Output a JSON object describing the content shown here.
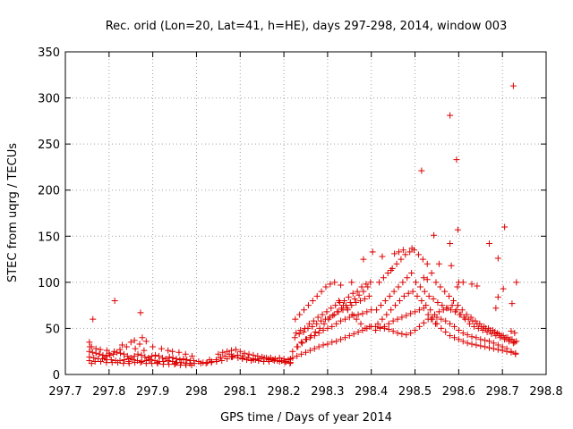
{
  "chart_data": {
    "type": "scatter",
    "title": "Rec. orid (Lon=20, Lat=41, h=HE), days 297-298, 2014, window 003",
    "xlabel": "GPS time / Days of year 2014",
    "ylabel": "STEC from uqrg / TECUs",
    "xlim": [
      297.7,
      298.8
    ],
    "ylim": [
      0,
      350
    ],
    "xticks": [
      "297.7",
      "297.8",
      "297.9",
      "298",
      "298.1",
      "298.2",
      "298.3",
      "298.4",
      "298.5",
      "298.6",
      "298.7",
      "298.8"
    ],
    "yticks": [
      "0",
      "50",
      "100",
      "150",
      "200",
      "250",
      "300",
      "350"
    ],
    "grid": true,
    "marker": "+",
    "color": "#dd0000",
    "series": [
      {
        "name": "STEC",
        "x": [
          297.755,
          297.762,
          297.77,
          297.778,
          297.786,
          297.794,
          297.802,
          297.81,
          297.818,
          297.826,
          297.834,
          297.842,
          297.85,
          297.858,
          297.866,
          297.874,
          297.882,
          297.89,
          297.898,
          297.906,
          297.914,
          297.922,
          297.93,
          297.938,
          297.946,
          297.954,
          297.962,
          297.97,
          297.978,
          297.986,
          297.994,
          297.755,
          297.765,
          297.775,
          297.785,
          297.795,
          297.805,
          297.815,
          297.825,
          297.835,
          297.845,
          297.855,
          297.865,
          297.875,
          297.885,
          297.895,
          297.905,
          297.915,
          297.925,
          297.935,
          297.945,
          297.955,
          297.965,
          297.975,
          297.985,
          297.995,
          297.755,
          297.768,
          297.781,
          297.794,
          297.807,
          297.82,
          297.833,
          297.846,
          297.859,
          297.872,
          297.885,
          297.898,
          297.911,
          297.924,
          297.937,
          297.95,
          297.963,
          297.976,
          297.989,
          297.755,
          297.76,
          297.77,
          297.78,
          297.795,
          297.812,
          297.825,
          297.84,
          297.85,
          297.86,
          297.87,
          297.876,
          297.885,
          297.9,
          297.92,
          297.935,
          297.945,
          297.96,
          297.975,
          297.99,
          297.763,
          297.813,
          297.872,
          297.756,
          297.8,
          297.858,
          297.88,
          297.83,
          297.76,
          297.79,
          297.845,
          297.892,
          297.91,
          297.952,
          297.985,
          298.005,
          298.015,
          298.025,
          298.035,
          298.045,
          298.055,
          298.065,
          298.075,
          298.085,
          298.095,
          298.105,
          298.115,
          298.125,
          298.135,
          298.145,
          298.155,
          298.165,
          298.175,
          298.185,
          298.195,
          298.205,
          298.215,
          298.01,
          298.022,
          298.034,
          298.046,
          298.058,
          298.07,
          298.082,
          298.094,
          298.106,
          298.118,
          298.13,
          298.142,
          298.154,
          298.166,
          298.178,
          298.19,
          298.202,
          298.214,
          298.05,
          298.06,
          298.07,
          298.08,
          298.09,
          298.1,
          298.11,
          298.12,
          298.13,
          298.14,
          298.15,
          298.16,
          298.17,
          298.18,
          298.19,
          298.2,
          298.21,
          298.03,
          298.055,
          298.08,
          298.105,
          298.13,
          298.165,
          298.195,
          298.215,
          298.22,
          298.23,
          298.24,
          298.25,
          298.26,
          298.27,
          298.28,
          298.29,
          298.3,
          298.31,
          298.32,
          298.33,
          298.34,
          298.35,
          298.36,
          298.37,
          298.38,
          298.39,
          298.4,
          298.22,
          298.23,
          298.24,
          298.25,
          298.26,
          298.27,
          298.28,
          298.29,
          298.3,
          298.31,
          298.32,
          298.33,
          298.34,
          298.35,
          298.36,
          298.37,
          298.38,
          298.39,
          298.4,
          298.225,
          298.235,
          298.245,
          298.255,
          298.265,
          298.275,
          298.285,
          298.295,
          298.305,
          298.315,
          298.325,
          298.335,
          298.345,
          298.355,
          298.365,
          298.375,
          298.385,
          298.395,
          298.228,
          298.238,
          298.248,
          298.258,
          298.268,
          298.278,
          298.288,
          298.298,
          298.308,
          298.318,
          298.328,
          298.338,
          298.348,
          298.358,
          298.368,
          298.378,
          298.388,
          298.398,
          298.232,
          298.242,
          298.252,
          298.262,
          298.272,
          298.282,
          298.292,
          298.302,
          298.312,
          298.322,
          298.332,
          298.342,
          298.352,
          298.362,
          298.372,
          298.382,
          298.392,
          298.226,
          298.236,
          298.246,
          298.256,
          298.266,
          298.276,
          298.286,
          298.296,
          298.306,
          298.316,
          298.326,
          298.336,
          298.346,
          298.356,
          298.366,
          298.376,
          298.386,
          298.396,
          298.41,
          298.42,
          298.43,
          298.44,
          298.45,
          298.46,
          298.47,
          298.48,
          298.49,
          298.5,
          298.51,
          298.52,
          298.53,
          298.54,
          298.55,
          298.56,
          298.57,
          298.58,
          298.59,
          298.6,
          298.61,
          298.62,
          298.63,
          298.64,
          298.65,
          298.66,
          298.67,
          298.68,
          298.69,
          298.7,
          298.71,
          298.72,
          298.73,
          298.41,
          298.42,
          298.43,
          298.44,
          298.45,
          298.46,
          298.47,
          298.48,
          298.49,
          298.5,
          298.51,
          298.52,
          298.53,
          298.54,
          298.55,
          298.56,
          298.57,
          298.58,
          298.59,
          298.6,
          298.61,
          298.62,
          298.63,
          298.64,
          298.65,
          298.66,
          298.67,
          298.68,
          298.69,
          298.7,
          298.71,
          298.72,
          298.73,
          298.415,
          298.425,
          298.435,
          298.445,
          298.455,
          298.465,
          298.475,
          298.485,
          298.495,
          298.505,
          298.515,
          298.525,
          298.535,
          298.545,
          298.555,
          298.565,
          298.575,
          298.585,
          298.595,
          298.605,
          298.615,
          298.625,
          298.635,
          298.645,
          298.655,
          298.665,
          298.675,
          298.685,
          298.695,
          298.705,
          298.715,
          298.725,
          298.412,
          298.422,
          298.432,
          298.442,
          298.452,
          298.462,
          298.472,
          298.482,
          298.492,
          298.502,
          298.512,
          298.522,
          298.532,
          298.542,
          298.552,
          298.562,
          298.572,
          298.582,
          298.592,
          298.602,
          298.612,
          298.622,
          298.632,
          298.642,
          298.652,
          298.662,
          298.672,
          298.682,
          298.692,
          298.702,
          298.712,
          298.722,
          298.732,
          298.418,
          298.428,
          298.438,
          298.448,
          298.458,
          298.468,
          298.478,
          298.488,
          298.498,
          298.508,
          298.518,
          298.528,
          298.538,
          298.548,
          298.558,
          298.568,
          298.578,
          298.588,
          298.598,
          298.608,
          298.618,
          298.628,
          298.638,
          298.648,
          298.658,
          298.668,
          298.678,
          298.688,
          298.698,
          298.708,
          298.718,
          298.728,
          298.515,
          298.58,
          298.595,
          298.725,
          298.705,
          298.58,
          298.598,
          298.543,
          298.67,
          298.69,
          298.555,
          298.583,
          298.61,
          298.445,
          298.425,
          298.403,
          298.382,
          298.355,
          298.33,
          298.473,
          298.463,
          298.453,
          298.493,
          298.732,
          298.722,
          298.642,
          298.63,
          298.702,
          298.685,
          298.52,
          298.528,
          298.6,
          298.69,
          298.72,
          298.728,
          298.537,
          298.547,
          298.597
        ],
        "y": [
          25,
          24,
          23,
          22,
          21,
          20,
          21,
          22,
          24,
          23,
          22,
          20,
          18,
          20,
          22,
          21,
          19,
          18,
          20,
          21,
          20,
          18,
          17,
          19,
          18,
          17,
          16,
          17,
          16,
          15,
          15,
          19,
          18,
          17,
          17,
          16,
          16,
          15,
          15,
          16,
          17,
          16,
          15,
          14,
          15,
          16,
          15,
          14,
          14,
          15,
          14,
          13,
          13,
          12,
          12,
          12,
          15,
          14,
          14,
          13,
          13,
          13,
          12,
          12,
          13,
          13,
          12,
          12,
          12,
          11,
          11,
          11,
          10,
          10,
          10,
          35,
          30,
          28,
          27,
          26,
          25,
          27,
          30,
          35,
          28,
          33,
          40,
          36,
          30,
          28,
          26,
          25,
          24,
          22,
          20,
          60,
          80,
          67,
          30,
          23,
          37,
          26,
          32,
          12,
          18,
          14,
          16,
          13,
          12,
          12,
          14,
          13,
          13,
          14,
          16,
          18,
          20,
          22,
          20,
          18,
          17,
          16,
          15,
          16,
          17,
          18,
          17,
          16,
          15,
          15,
          14,
          13,
          12,
          12,
          13,
          14,
          15,
          17,
          19,
          21,
          20,
          18,
          16,
          15,
          14,
          14,
          15,
          14,
          13,
          12,
          22,
          24,
          25,
          26,
          27,
          25,
          23,
          22,
          21,
          20,
          19,
          18,
          18,
          17,
          18,
          17,
          16,
          16,
          18,
          19,
          18,
          17,
          16,
          15,
          17,
          18,
          20,
          22,
          24,
          26,
          28,
          30,
          32,
          33,
          35,
          36,
          38,
          40,
          42,
          44,
          46,
          48,
          50,
          52,
          25,
          30,
          35,
          38,
          40,
          42,
          45,
          48,
          50,
          52,
          55,
          58,
          60,
          62,
          64,
          65,
          66,
          68,
          70,
          40,
          44,
          46,
          50,
          52,
          55,
          58,
          60,
          62,
          65,
          68,
          70,
          72,
          75,
          78,
          80,
          82,
          85,
          45,
          48,
          50,
          55,
          58,
          62,
          65,
          68,
          72,
          75,
          78,
          80,
          84,
          88,
          90,
          95,
          98,
          100,
          30,
          34,
          38,
          42,
          46,
          50,
          55,
          60,
          64,
          68,
          72,
          75,
          78,
          82,
          86,
          90,
          95,
          60,
          65,
          70,
          75,
          80,
          85,
          90,
          95,
          98,
          100,
          80,
          75,
          70,
          65,
          60,
          55,
          50,
          52,
          52,
          51,
          50,
          49,
          47,
          45,
          44,
          43,
          45,
          48,
          52,
          56,
          60,
          62,
          62,
          60,
          58,
          55,
          52,
          48,
          45,
          43,
          41,
          40,
          38,
          37,
          36,
          34,
          32,
          30,
          28,
          25,
          22,
          48,
          50,
          52,
          55,
          58,
          60,
          62,
          64,
          66,
          68,
          70,
          72,
          65,
          60,
          55,
          50,
          46,
          42,
          40,
          38,
          36,
          34,
          33,
          32,
          31,
          30,
          29,
          28,
          27,
          26,
          25,
          24,
          23,
          55,
          60,
          65,
          70,
          75,
          80,
          85,
          88,
          90,
          85,
          80,
          75,
          70,
          65,
          68,
          70,
          72,
          75,
          70,
          65,
          60,
          55,
          52,
          50,
          48,
          46,
          44,
          42,
          40,
          38,
          36,
          34,
          70,
          75,
          80,
          85,
          90,
          95,
          100,
          105,
          110,
          100,
          95,
          90,
          85,
          82,
          78,
          75,
          72,
          70,
          68,
          65,
          62,
          60,
          58,
          55,
          52,
          50,
          48,
          46,
          44,
          42,
          40,
          38,
          36,
          100,
          105,
          110,
          115,
          120,
          125,
          130,
          133,
          135,
          130,
          125,
          120,
          110,
          100,
          95,
          90,
          85,
          80,
          75,
          70,
          65,
          62,
          58,
          55,
          52,
          50,
          48,
          45,
          42,
          40,
          38,
          35,
          221,
          281,
          233,
          313,
          160,
          142,
          157,
          151,
          142,
          126,
          120,
          118,
          100,
          113,
          128,
          133,
          125,
          100,
          97,
          135,
          133,
          131,
          137,
          100,
          77,
          96,
          98,
          93,
          72,
          105,
          103,
          100,
          84,
          47,
          45,
          60,
          55,
          95
        ]
      }
    ]
  }
}
